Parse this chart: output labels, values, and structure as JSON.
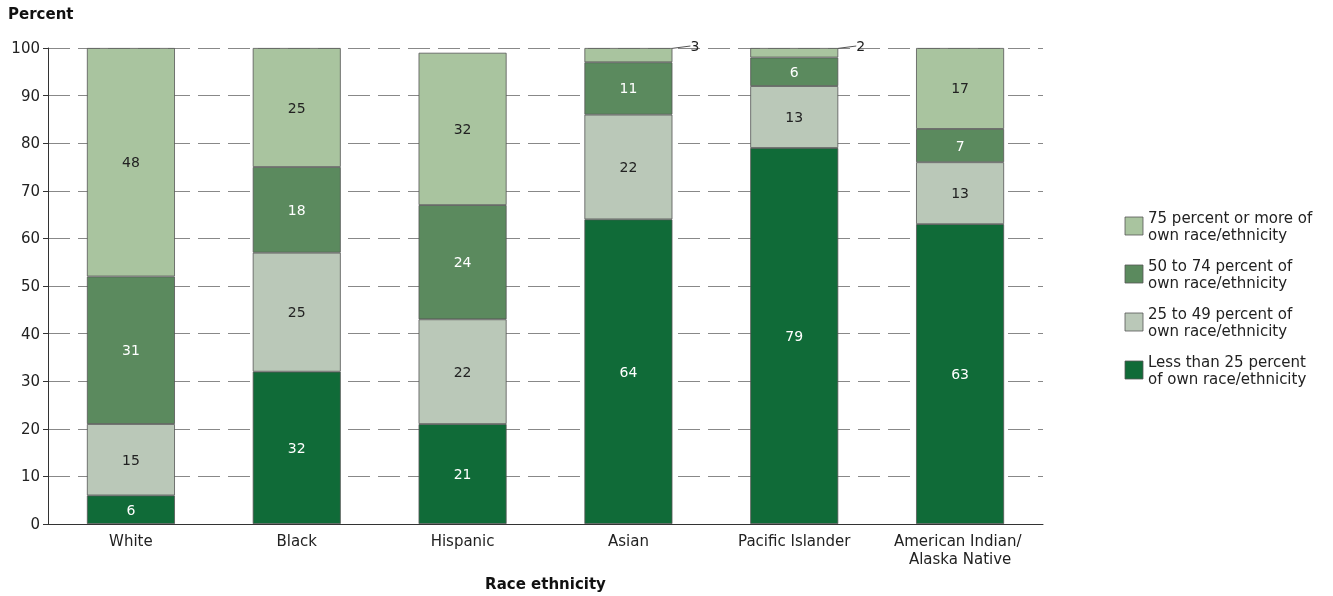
{
  "chart_data": {
    "type": "bar",
    "stacked": true,
    "xlabel": "Race ethnicity",
    "ylabel": "Percent",
    "categories": [
      "White",
      "Black",
      "Hispanic",
      "Asian",
      "Pacific Islander",
      "American Indian/ Alaska Native"
    ],
    "series": [
      {
        "name": "Less than 25 percent of own race/ethnicity",
        "color": "#106b38",
        "values": [
          6,
          32,
          21,
          64,
          79,
          63
        ]
      },
      {
        "name": "25 to 49 percent of own race/ethnicity",
        "color": "#bac8b8",
        "values": [
          15,
          25,
          22,
          22,
          13,
          13
        ]
      },
      {
        "name": "50 to 74 percent of own race/ethnicity",
        "color": "#5b8a5e",
        "values": [
          31,
          18,
          24,
          11,
          6,
          7
        ]
      },
      {
        "name": "75 percent or more of own race/ethnicity",
        "color": "#a9c49f",
        "values": [
          48,
          25,
          32,
          3,
          2,
          17
        ]
      }
    ],
    "ylim": [
      0,
      100
    ],
    "yticks": [
      0,
      10,
      20,
      30,
      40,
      50,
      60,
      70,
      80,
      90,
      100
    ],
    "grid": "y",
    "legend": "right",
    "data_labels": true
  }
}
